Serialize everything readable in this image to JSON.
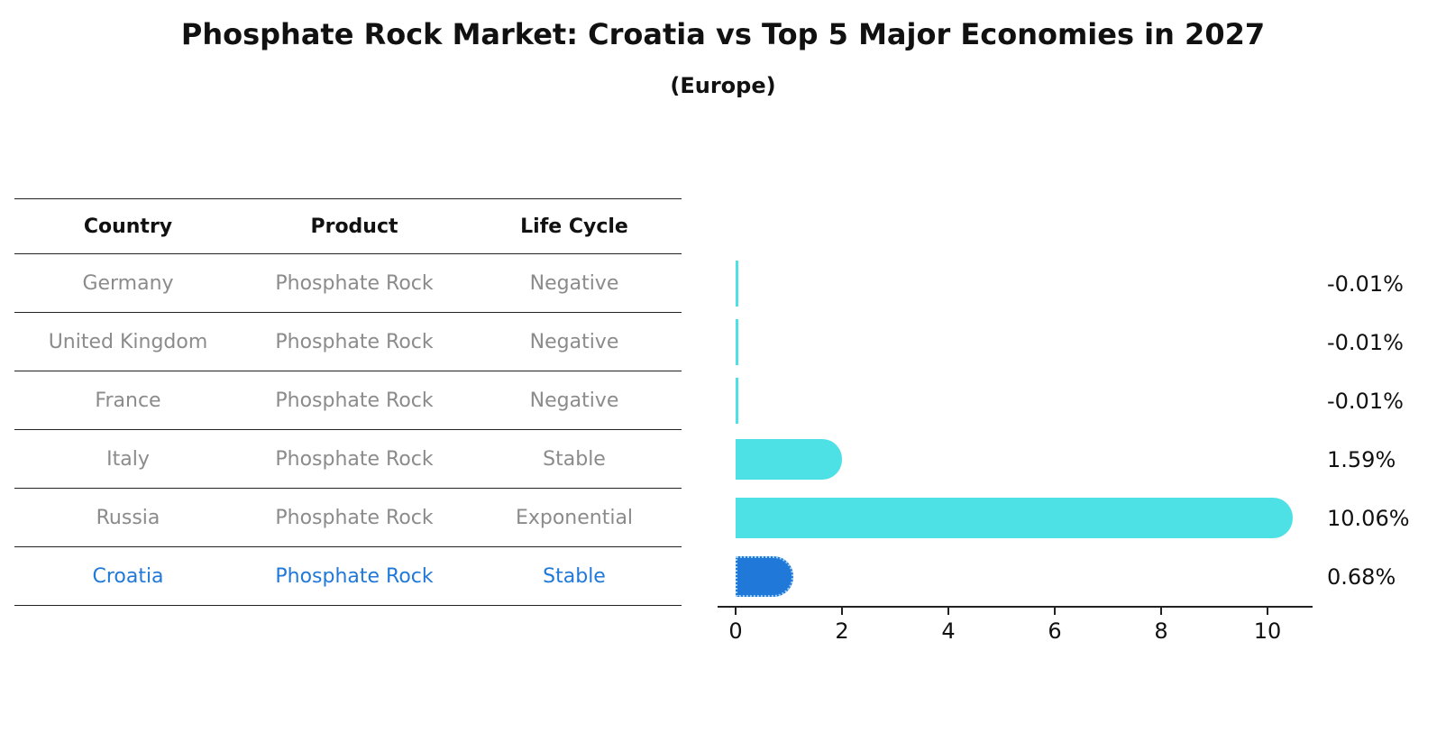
{
  "title": "Phosphate Rock Market: Croatia vs Top 5 Major Economies in 2027",
  "subtitle": "(Europe)",
  "table": {
    "headers": [
      "Country",
      "Product",
      "Life Cycle"
    ],
    "rows": [
      {
        "country": "Germany",
        "product": "Phosphate Rock",
        "life_cycle": "Negative",
        "highlight": false
      },
      {
        "country": "United Kingdom",
        "product": "Phosphate Rock",
        "life_cycle": "Negative",
        "highlight": false
      },
      {
        "country": "France",
        "product": "Phosphate Rock",
        "life_cycle": "Negative",
        "highlight": false
      },
      {
        "country": "Italy",
        "product": "Phosphate Rock",
        "life_cycle": "Stable",
        "highlight": false
      },
      {
        "country": "Russia",
        "product": "Phosphate Rock",
        "life_cycle": "Exponential",
        "highlight": false
      },
      {
        "country": "Croatia",
        "product": "Phosphate Rock",
        "life_cycle": "Stable",
        "highlight": true
      }
    ]
  },
  "chart_data": {
    "type": "bar",
    "orientation": "horizontal",
    "title": "Phosphate Rock Market: Croatia vs Top 5 Major Economies in 2027 (Europe)",
    "categories": [
      "Germany",
      "United Kingdom",
      "France",
      "Italy",
      "Russia",
      "Croatia"
    ],
    "values": [
      -0.01,
      -0.01,
      -0.01,
      1.59,
      10.06,
      0.68
    ],
    "value_labels": [
      "-0.01%",
      "-0.01%",
      "-0.01%",
      "1.59%",
      "10.06%",
      "0.68%"
    ],
    "xticks": [
      0,
      2,
      4,
      6,
      8,
      10
    ],
    "xlim": [
      0,
      10.5
    ],
    "grid": false,
    "legend": "none",
    "bar_color": "#4de1e6",
    "highlight_color": "#2079d8",
    "highlight_index": 5
  }
}
